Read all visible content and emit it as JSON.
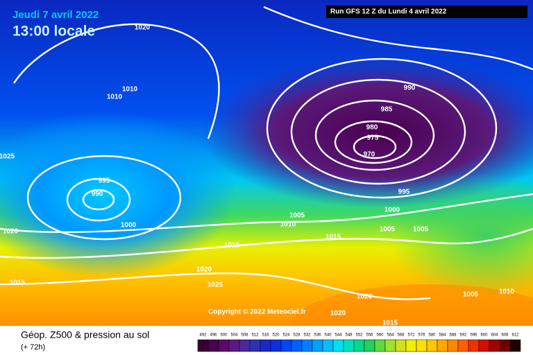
{
  "header": {
    "date": "Jeudi 7 avril 2022",
    "time": "13:00 locale",
    "run": "Run GFS 12 Z du Lundi 4 avril 2022"
  },
  "copyright": "Copyright © 2022 Meteociel.fr",
  "isobar_labels": [
    1020,
    1010,
    1010,
    1025,
    995,
    990,
    1000,
    1020,
    1015,
    990,
    985,
    980,
    975,
    970,
    995,
    1000,
    1005,
    1010,
    1005,
    1005,
    1015,
    1015,
    1020,
    1025,
    1020,
    1020,
    1015,
    1005,
    1010
  ],
  "footer": {
    "title": "Géop. Z500 & pression au sol",
    "subtitle": "(+ 72h)"
  },
  "colorbar": {
    "labels": [
      492,
      496,
      500,
      504,
      508,
      512,
      516,
      520,
      524,
      528,
      532,
      536,
      540,
      544,
      548,
      552,
      556,
      560,
      564,
      568,
      572,
      576,
      580,
      584,
      588,
      592,
      596,
      600,
      604,
      608,
      612
    ],
    "colors": [
      "#3a0030",
      "#4b0050",
      "#5a0a6a",
      "#5c1a80",
      "#4a2a9a",
      "#3030b0",
      "#1a28c8",
      "#0a30e0",
      "#0048f0",
      "#0060ff",
      "#0080ff",
      "#00a0ff",
      "#00c0ff",
      "#00e0f0",
      "#00e0c0",
      "#00d890",
      "#20d060",
      "#60d840",
      "#a0e030",
      "#d0e020",
      "#f0f000",
      "#ffe000",
      "#ffc800",
      "#ffa800",
      "#ff8800",
      "#ff6000",
      "#f03000",
      "#d01000",
      "#a00000",
      "#700000",
      "#200000"
    ]
  }
}
